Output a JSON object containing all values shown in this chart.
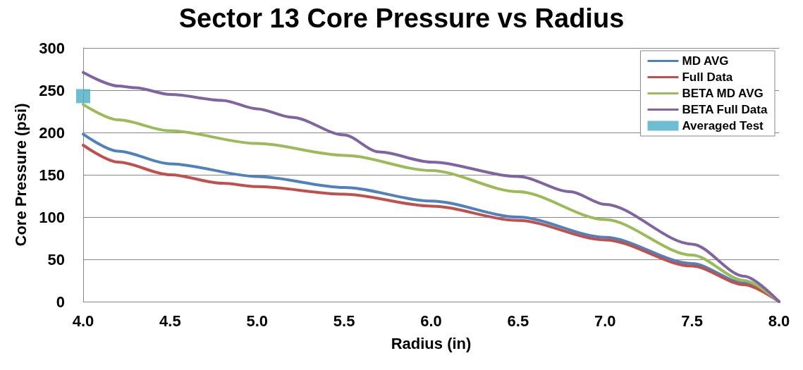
{
  "chart_data": {
    "type": "line",
    "title": "Sector 13 Core Pressure vs Radius",
    "xlabel": "Radius (in)",
    "ylabel": "Core Pressure (psi)",
    "xlim": [
      4.0,
      8.0
    ],
    "xticks": [
      {
        "value": 4,
        "label": "4.0"
      },
      4.5,
      {
        "value": 5,
        "label": "5.0"
      },
      5.5,
      {
        "value": 6,
        "label": "6.0"
      },
      6.5,
      {
        "value": 7,
        "label": "7.0"
      },
      7.5,
      {
        "value": 8,
        "label": "8.0"
      }
    ],
    "ylim": [
      0,
      300
    ],
    "yticks": [
      0,
      50,
      100,
      150,
      200,
      250,
      300
    ],
    "grid": "y",
    "legend": "top right",
    "marker": "none",
    "line_style": "solid",
    "series": [
      {
        "name": "MD AVG",
        "color": "#4f81bd",
        "x": [
          4.0,
          4.2,
          4.5,
          5.0,
          5.5,
          6.0,
          6.5,
          7.0,
          7.5,
          7.8,
          8.0
        ],
        "values": [
          198,
          178,
          163,
          148,
          135,
          119,
          100,
          76,
          45,
          22,
          0
        ]
      },
      {
        "name": "Full Data",
        "color": "#c0504d",
        "x": [
          4.0,
          4.2,
          4.5,
          4.8,
          5.0,
          5.5,
          6.0,
          6.5,
          7.0,
          7.5,
          7.8,
          8.0
        ],
        "values": [
          185,
          165,
          150,
          140,
          136,
          127,
          113,
          96,
          73,
          42,
          20,
          0
        ]
      },
      {
        "name": "BETA MD AVG",
        "color": "#9bbb59",
        "x": [
          4.0,
          4.2,
          4.5,
          5.0,
          5.5,
          6.0,
          6.5,
          7.0,
          7.5,
          7.8,
          8.0
        ],
        "values": [
          233,
          215,
          202,
          187,
          173,
          155,
          130,
          97,
          55,
          25,
          0
        ]
      },
      {
        "name": "BETA Full Data",
        "color": "#8064a2",
        "x": [
          4.0,
          4.2,
          4.3,
          4.5,
          4.8,
          5.0,
          5.2,
          5.5,
          5.7,
          6.0,
          6.5,
          6.8,
          7.0,
          7.5,
          7.8,
          8.0
        ],
        "values": [
          271,
          255,
          253,
          245,
          238,
          228,
          218,
          197,
          177,
          165,
          148,
          130,
          115,
          68,
          30,
          0
        ]
      },
      {
        "name": "Averaged Test",
        "type": "scatter",
        "marker": "square",
        "color": "#4bacc6",
        "x": [
          4.0
        ],
        "values": [
          243
        ]
      }
    ]
  }
}
